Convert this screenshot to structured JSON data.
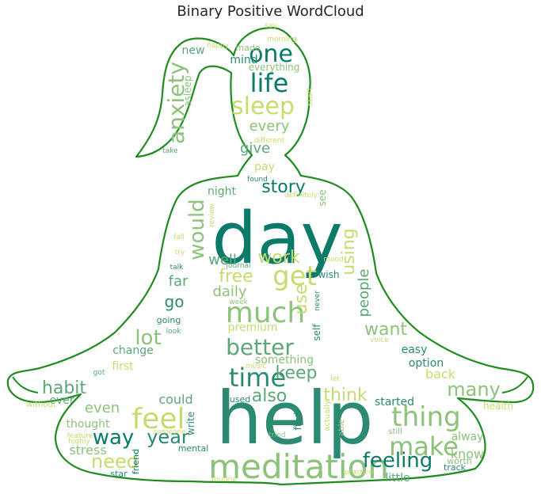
{
  "title": "Binary Positive WordCloud",
  "colors": {
    "outline": "#1e8c1e",
    "palette": [
      "#0b7a68",
      "#2a8a72",
      "#5aa878",
      "#8cc27a",
      "#c5dc6e",
      "#e3ec80"
    ]
  },
  "words": [
    "help",
    "day",
    "meditation",
    "feel",
    "thing",
    "make",
    "time",
    "better",
    "much",
    "get",
    "sleep",
    "life",
    "one",
    "anxiety",
    "way",
    "year",
    "feeling",
    "need",
    "lot",
    "keep",
    "many",
    "also",
    "think",
    "habit",
    "would",
    "using",
    "story",
    "work",
    "free",
    "use",
    "daily",
    "well",
    "go",
    "want",
    "easy",
    "even",
    "people",
    "every",
    "give",
    "could",
    "stress",
    "know",
    "little",
    "far",
    "first",
    "change",
    "premium",
    "something",
    "alway",
    "option",
    "back",
    "thought",
    "started",
    "ever",
    "pay",
    "night",
    "new",
    "mind",
    "made",
    "everything",
    "asleep",
    "start",
    "different",
    "take",
    "say",
    "morning",
    "happy",
    "see",
    "found",
    "definitely",
    "review",
    "fall",
    "try",
    "talk",
    "journal",
    "mood",
    "wish",
    "week",
    "never",
    "self",
    "going",
    "look",
    "voice",
    "got",
    "music",
    "let",
    "health",
    "without",
    "used",
    "write",
    "find",
    "actually",
    "able",
    "still",
    "highly",
    "feature",
    "someone",
    "mental",
    "tried",
    "friend",
    "worth",
    "track",
    "star",
    "practice",
    "routine"
  ]
}
